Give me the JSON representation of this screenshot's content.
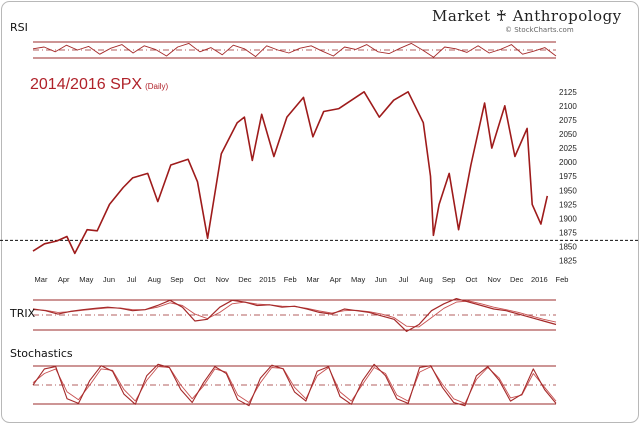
{
  "header": {
    "brand": "Market ♰ Anthropology",
    "source": "© StockCharts.com"
  },
  "colors": {
    "price": "#9e1b1b",
    "indicator_line": "#a52a2a",
    "indicator_signal": "#c75050",
    "frame": "#9b2b2b",
    "reference_dashed": "#111111"
  },
  "chart_data": [
    {
      "type": "line",
      "panel": "RSI",
      "title": "RSI",
      "guides": [
        "upper band",
        "centerline",
        "lower band"
      ],
      "series": [
        {
          "values": [
            57,
            60,
            52,
            63,
            55,
            61,
            48,
            58,
            64,
            50,
            62,
            56,
            45,
            60,
            66,
            52,
            59,
            47,
            63,
            57,
            44,
            62,
            55,
            50,
            58,
            62,
            53,
            45,
            60,
            56,
            64,
            52,
            49,
            58,
            66,
            55,
            43,
            60,
            57,
            51,
            62,
            50,
            56,
            64,
            48,
            53,
            59,
            45
          ]
        }
      ]
    },
    {
      "type": "line",
      "panel": "SPX",
      "title": "2014/2016 SPX",
      "subtitle": "(Daily)",
      "x_labels": [
        "Mar",
        "Apr",
        "May",
        "Jun",
        "Jul",
        "Aug",
        "Sep",
        "Oct",
        "Nov",
        "Dec",
        "2015",
        "Feb",
        "Mar",
        "Apr",
        "May",
        "Jun",
        "Jul",
        "Aug",
        "Sep",
        "Oct",
        "Nov",
        "Dec",
        "2016",
        "Feb"
      ],
      "y_ticks": [
        2125,
        2100,
        2075,
        2050,
        2025,
        2000,
        1975,
        1950,
        1925,
        1900,
        1875,
        1850,
        1825
      ],
      "ylim": [
        1812,
        2137
      ],
      "reference_line": 1861,
      "x": [
        "2014-02-15",
        "2014-03-03",
        "2014-03-20",
        "2014-04-03",
        "2014-04-14",
        "2014-05-01",
        "2014-05-15",
        "2014-06-01",
        "2014-06-20",
        "2014-07-03",
        "2014-07-24",
        "2014-08-07",
        "2014-08-25",
        "2014-09-18",
        "2014-10-01",
        "2014-10-15",
        "2014-11-03",
        "2014-11-25",
        "2014-12-05",
        "2014-12-16",
        "2014-12-29",
        "2015-01-15",
        "2015-02-02",
        "2015-02-25",
        "2015-03-10",
        "2015-03-25",
        "2015-04-15",
        "2015-05-20",
        "2015-06-10",
        "2015-06-30",
        "2015-07-20",
        "2015-08-10",
        "2015-08-20",
        "2015-08-24",
        "2015-09-01",
        "2015-09-15",
        "2015-09-28",
        "2015-10-15",
        "2015-11-03",
        "2015-11-13",
        "2015-12-01",
        "2015-12-15",
        "2016-01-01",
        "2016-01-08",
        "2016-01-20",
        "2016-01-29"
      ],
      "series": [
        {
          "name": "SPX",
          "values": [
            1842,
            1855,
            1860,
            1868,
            1838,
            1880,
            1878,
            1925,
            1955,
            1972,
            1980,
            1930,
            1995,
            2005,
            1965,
            1865,
            2015,
            2070,
            2080,
            2003,
            2085,
            2010,
            2080,
            2115,
            2045,
            2090,
            2095,
            2125,
            2080,
            2110,
            2125,
            2070,
            1975,
            1870,
            1925,
            1980,
            1880,
            1995,
            2105,
            2025,
            2100,
            2010,
            2060,
            1925,
            1890,
            1940
          ]
        }
      ]
    },
    {
      "type": "line",
      "panel": "TRIX",
      "title": "TRIX",
      "guides": [
        "upper",
        "zero",
        "lower"
      ],
      "series": [
        {
          "values": [
            0.1,
            0.05,
            -0.05,
            0.03,
            0.08,
            0.12,
            0.15,
            0.12,
            0.05,
            0.08,
            0.2,
            0.35,
            0.15,
            -0.25,
            -0.2,
            0.15,
            0.35,
            0.3,
            0.2,
            0.22,
            0.15,
            0.18,
            0.1,
            0.0,
            -0.05,
            0.1,
            0.05,
            0.0,
            -0.1,
            -0.2,
            -0.55,
            -0.35,
            0.05,
            0.25,
            0.4,
            0.3,
            0.2,
            0.1,
            0.05,
            -0.05,
            -0.15,
            -0.25,
            -0.35
          ]
        },
        {
          "values": [
            0.08,
            0.06,
            0.0,
            0.02,
            0.06,
            0.1,
            0.13,
            0.13,
            0.08,
            0.08,
            0.15,
            0.28,
            0.2,
            -0.05,
            -0.18,
            0.0,
            0.25,
            0.3,
            0.24,
            0.22,
            0.18,
            0.17,
            0.12,
            0.04,
            -0.02,
            0.05,
            0.06,
            0.02,
            -0.05,
            -0.15,
            -0.4,
            -0.42,
            -0.15,
            0.12,
            0.3,
            0.33,
            0.25,
            0.15,
            0.08,
            0.0,
            -0.1,
            -0.2,
            -0.28
          ]
        }
      ]
    },
    {
      "type": "line",
      "panel": "Stochastics",
      "title": "Stochastics",
      "guides": [
        "upper band",
        "centerline",
        "lower band"
      ],
      "series": [
        {
          "values": [
            50,
            85,
            90,
            20,
            10,
            60,
            92,
            80,
            30,
            8,
            70,
            95,
            88,
            40,
            12,
            55,
            90,
            75,
            18,
            5,
            65,
            93,
            85,
            35,
            15,
            80,
            90,
            25,
            8,
            60,
            95,
            70,
            20,
            10,
            88,
            92,
            45,
            12,
            5,
            70,
            90,
            60,
            15,
            30,
            85,
            40,
            10
          ]
        },
        {
          "values": [
            55,
            75,
            85,
            35,
            18,
            50,
            85,
            82,
            40,
            15,
            60,
            90,
            88,
            50,
            20,
            48,
            85,
            78,
            28,
            12,
            55,
            88,
            86,
            45,
            20,
            70,
            88,
            35,
            15,
            52,
            88,
            75,
            28,
            15,
            78,
            90,
            52,
            20,
            10,
            62,
            88,
            65,
            22,
            28,
            75,
            45,
            15
          ]
        }
      ]
    }
  ]
}
